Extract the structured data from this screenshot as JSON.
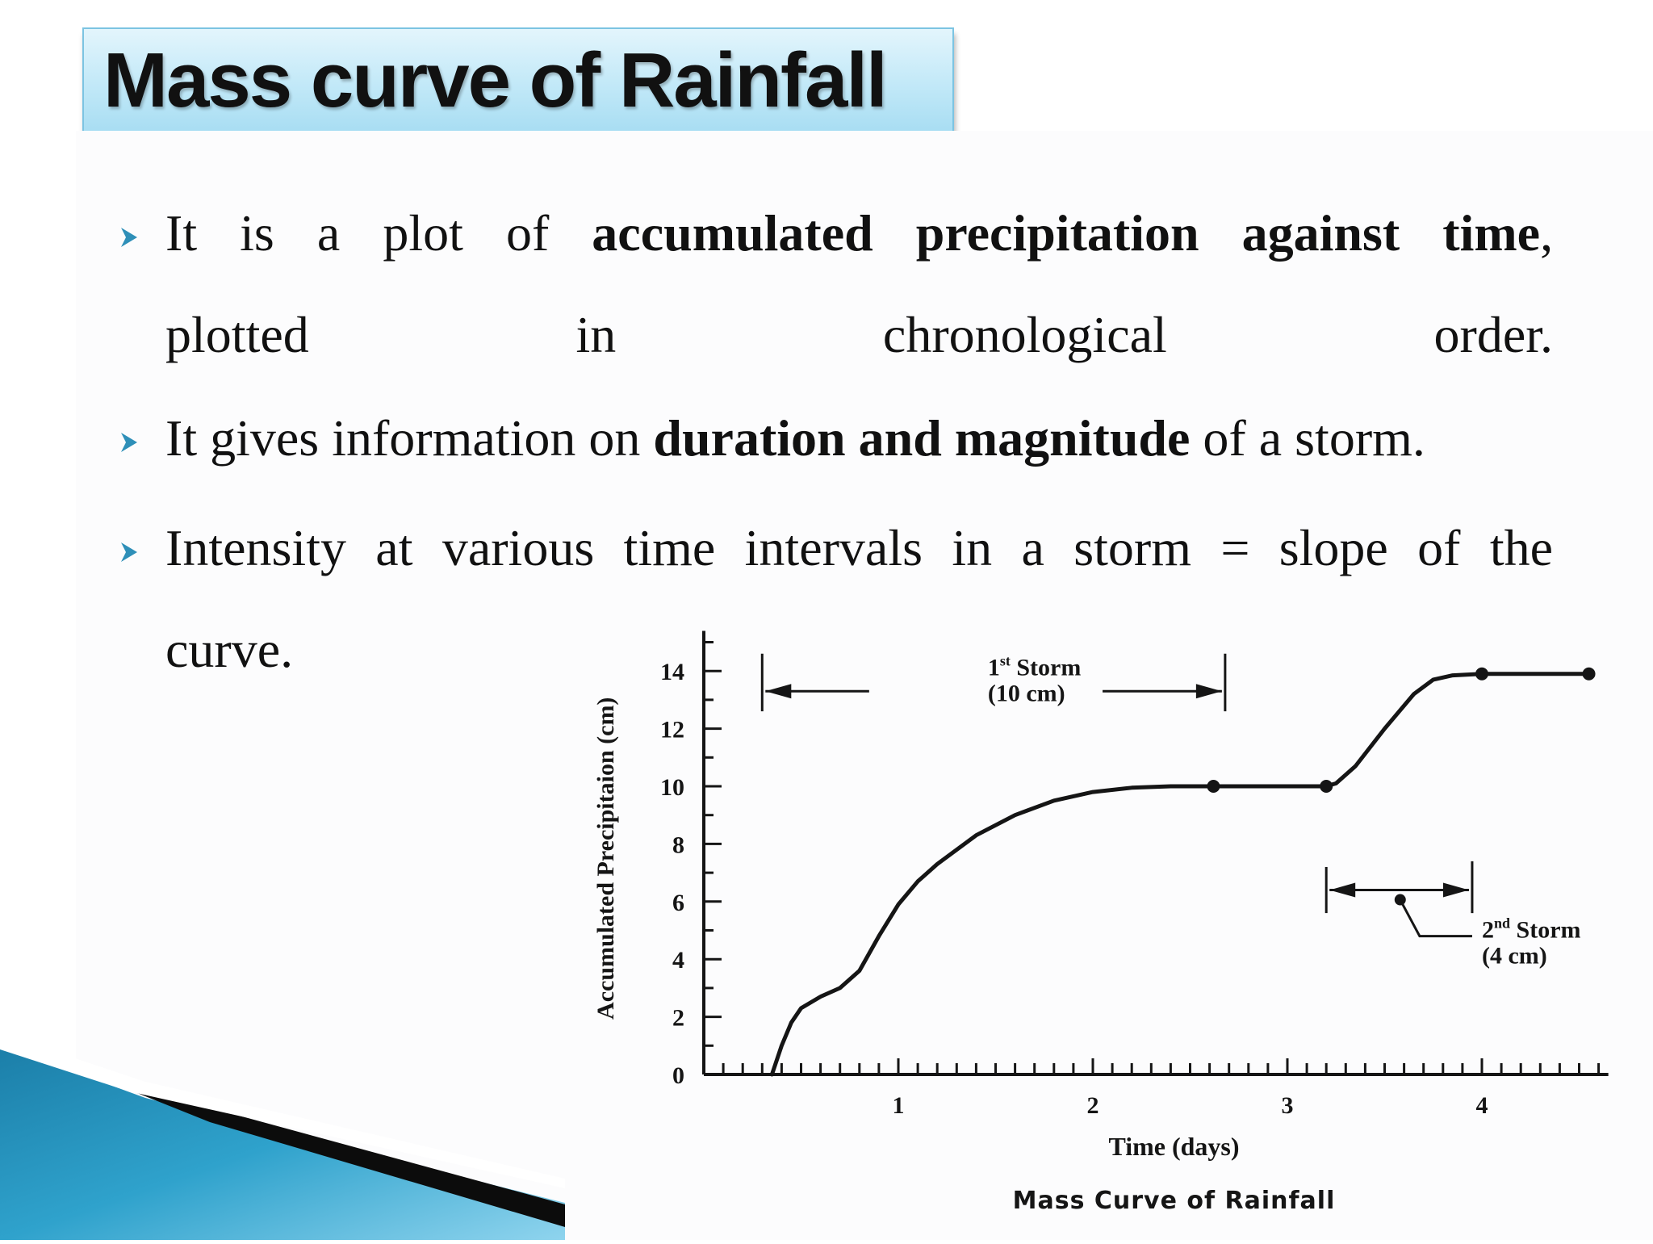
{
  "slide": {
    "title": "Mass curve of Rainfall",
    "accent_color": "#2e8fb8",
    "bullet_icon": "arrowhead-bullet-icon"
  },
  "bullets": [
    {
      "line1": [
        {
          "t": "It",
          "b": false
        },
        {
          "t": "is",
          "b": false
        },
        {
          "t": "a",
          "b": false
        },
        {
          "t": "plot",
          "b": false
        },
        {
          "t": "of",
          "b": false
        },
        {
          "t": "accumulated",
          "b": true
        },
        {
          "t": "precipitation",
          "b": true
        },
        {
          "t": "against",
          "b": true
        },
        {
          "t": "time",
          "b": true
        }
      ],
      "line1_tail": ",",
      "line2": "plotted in chronological order."
    },
    {
      "before": "It gives information on ",
      "bold": "duration and magnitude",
      "after": " of a storm."
    },
    {
      "line1": "Intensity at various time intervals in a storm = slope of the",
      "line2": "curve."
    }
  ],
  "chart_data": {
    "type": "line",
    "title": "Mass Curve of Rainfall",
    "xlabel": "Time (days)",
    "ylabel": "Accumulated Precipitaion (cm)",
    "xlim": [
      0,
      4.65
    ],
    "ylim": [
      0,
      15
    ],
    "x_ticks": [
      "1",
      "2",
      "3",
      "4"
    ],
    "y_ticks": [
      "0",
      "2",
      "4",
      "6",
      "8",
      "10",
      "12",
      "14"
    ],
    "series": [
      {
        "points": [
          [
            0.35,
            0
          ],
          [
            0.4,
            1.0
          ],
          [
            0.45,
            1.8
          ],
          [
            0.5,
            2.3
          ],
          [
            0.6,
            2.7
          ],
          [
            0.7,
            3.0
          ],
          [
            0.8,
            3.6
          ],
          [
            0.9,
            4.8
          ],
          [
            1.0,
            5.9
          ],
          [
            1.1,
            6.7
          ],
          [
            1.2,
            7.3
          ],
          [
            1.4,
            8.3
          ],
          [
            1.6,
            9.0
          ],
          [
            1.8,
            9.5
          ],
          [
            2.0,
            9.8
          ],
          [
            2.2,
            9.95
          ],
          [
            2.4,
            10.0
          ],
          [
            2.62,
            10.0
          ],
          [
            2.8,
            10.0
          ],
          [
            3.0,
            10.0
          ],
          [
            3.2,
            10.0
          ],
          [
            3.25,
            10.1
          ],
          [
            3.35,
            10.7
          ],
          [
            3.5,
            12.0
          ],
          [
            3.65,
            13.2
          ],
          [
            3.75,
            13.7
          ],
          [
            3.85,
            13.85
          ],
          [
            4.0,
            13.9
          ],
          [
            4.2,
            13.9
          ],
          [
            4.45,
            13.9
          ],
          [
            4.55,
            13.9
          ]
        ],
        "markers": [
          [
            2.62,
            10.0
          ],
          [
            3.2,
            10.0
          ],
          [
            4.0,
            13.9
          ],
          [
            4.55,
            13.9
          ]
        ]
      }
    ],
    "annotations": [
      {
        "text": "1st Storm",
        "sup": "st",
        "line2": "(10 cm)",
        "x_from": 0.3,
        "x_to": 2.68
      },
      {
        "text": "2nd Storm",
        "sup": "nd",
        "line2": "(4 cm)",
        "x_from": 3.2,
        "x_to": 3.95
      }
    ]
  }
}
